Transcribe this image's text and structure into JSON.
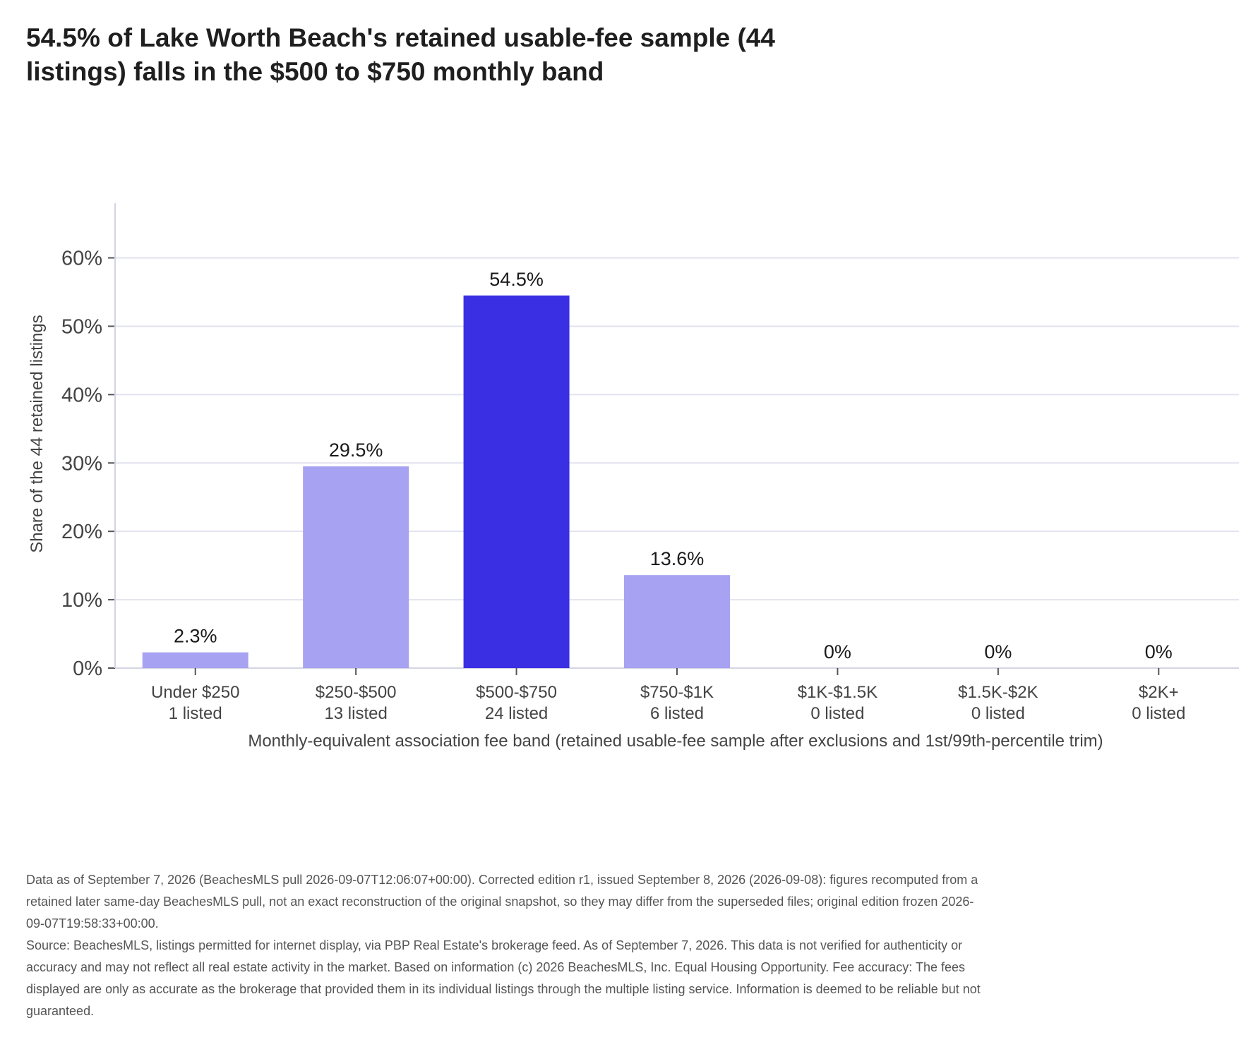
{
  "title": "54.5% of Lake Worth Beach's retained usable-fee sample (44 listings) falls in the $500 to $750 monthly band",
  "chart_data": {
    "type": "bar",
    "categories": [
      "Under $250",
      "$250-$500",
      "$500-$750",
      "$750-$1K",
      "$1K-$1.5K",
      "$1.5K-$2K",
      "$2K+"
    ],
    "category_counts": [
      "1 listed",
      "13 listed",
      "24 listed",
      "6 listed",
      "0 listed",
      "0 listed",
      "0 listed"
    ],
    "values": [
      2.3,
      29.5,
      54.5,
      13.6,
      0,
      0,
      0
    ],
    "value_labels": [
      "2.3%",
      "29.5%",
      "54.5%",
      "13.6%",
      "0%",
      "0%",
      "0%"
    ],
    "highlight_index": 2,
    "ylabel": "Share of the 44 retained listings",
    "xlabel": "Monthly-equivalent association fee band (retained usable-fee sample after exclusions and 1st/99th-percentile trim)",
    "yticks": [
      0,
      10,
      20,
      30,
      40,
      50,
      60
    ],
    "ytick_labels": [
      "0%",
      "10%",
      "20%",
      "30%",
      "40%",
      "50%",
      "60%"
    ],
    "ylim": [
      0,
      68
    ],
    "grid": true,
    "colors": {
      "bar": "#a7a2f2",
      "highlight": "#3b2fe3",
      "grid": "#e2e2f0",
      "axis": "#d4d4e4",
      "text": "#444444",
      "label": "#1a1a1a"
    }
  },
  "footnote": {
    "line1": "Data as of September 7, 2026 (BeachesMLS pull 2026-09-07T12:06:07+00:00). Corrected edition r1, issued September 8, 2026 (2026-09-08): figures recomputed from a retained later same-day BeachesMLS pull, not an exact reconstruction of the original snapshot, so they may differ from the superseded files; original edition frozen 2026-09-07T19:58:33+00:00.",
    "line2": "Source: BeachesMLS, listings permitted for internet display, via PBP Real Estate's brokerage feed. As of September 7, 2026. This data is not verified for authenticity or accuracy and may not reflect all real estate activity in the market. Based on information (c) 2026 BeachesMLS, Inc. Equal Housing Opportunity. Fee accuracy: The fees displayed are only as accurate as the brokerage that provided them in its individual listings through the multiple listing service. Information is deemed to be reliable but not guaranteed."
  }
}
